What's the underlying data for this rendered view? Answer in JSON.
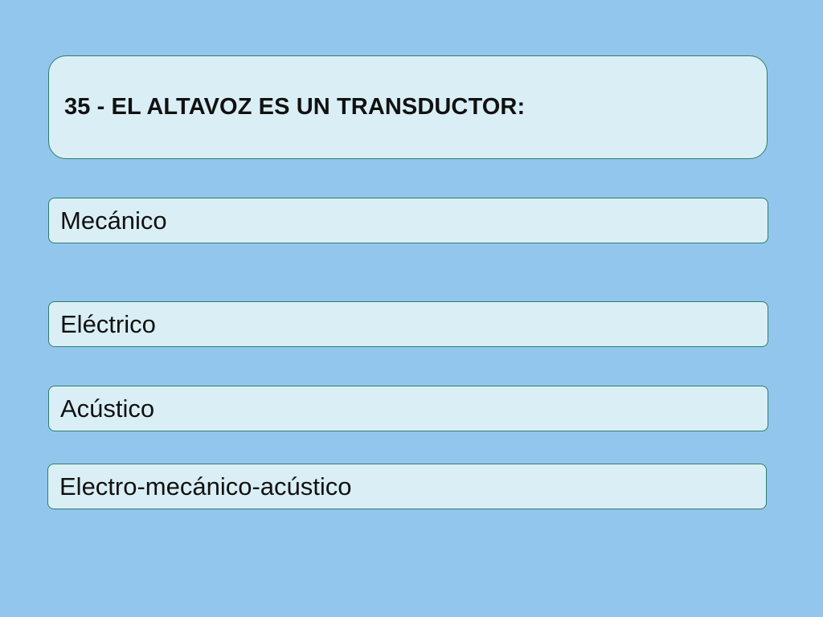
{
  "question": {
    "text": "35 - EL ALTAVOZ ES UN TRANSDUCTOR:"
  },
  "options": [
    {
      "label": "Mecánico"
    },
    {
      "label": "Eléctrico"
    },
    {
      "label": "Acústico"
    },
    {
      "label": "Electro-mecánico-acústico"
    }
  ],
  "colors": {
    "background": "#93c6ec",
    "box_fill": "#daeff5",
    "box_border": "#2e7d6a",
    "text": "#111111"
  }
}
